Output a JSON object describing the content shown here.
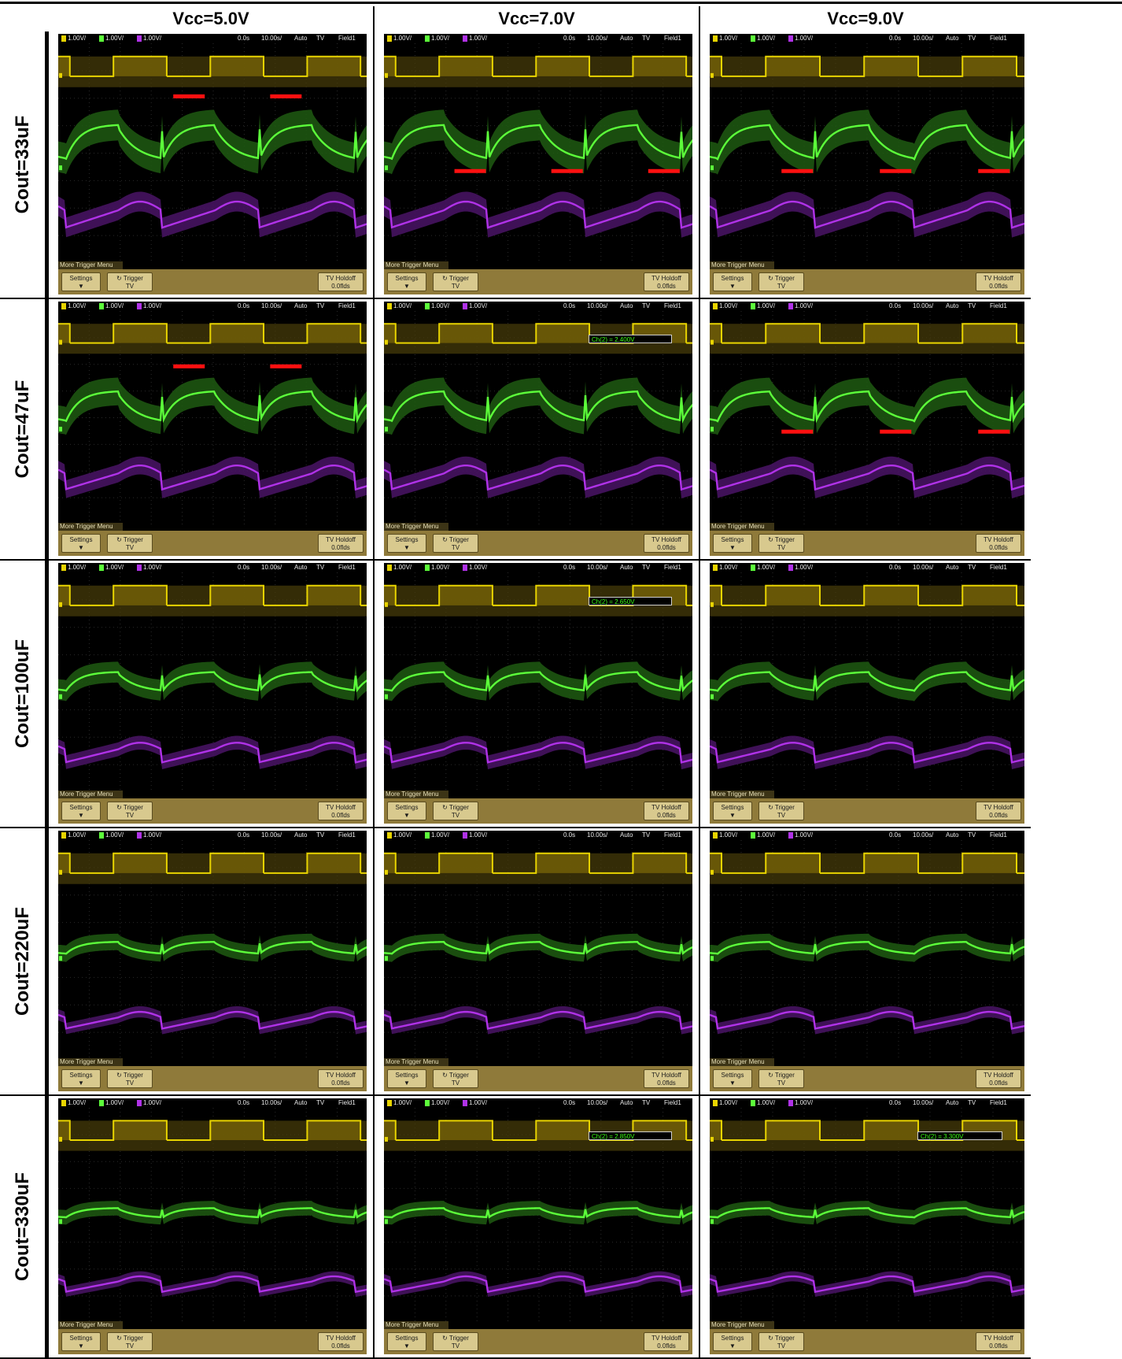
{
  "columns": [
    "Vcc=5.0V",
    "Vcc=7.0V",
    "Vcc=9.0V"
  ],
  "rows": [
    "Cout=33uF",
    "Cout=47uF",
    "Cout=100uF",
    "Cout=220uF",
    "Cout=330uF"
  ],
  "status_bar": {
    "ch1": "1.00V/",
    "ch2": "1.00V/",
    "ch3": "1.00V/",
    "delay": "0.0s",
    "timebase": "10.00s/",
    "trigger_mode": "Auto",
    "trigger_source": "TV",
    "field": "Field1"
  },
  "softkeys": {
    "menu_title": "More Trigger Menu",
    "settings": "Settings",
    "trigger": "Trigger",
    "trigger_sub": "TV",
    "holdoff": "TV Holdoff",
    "holdoff_value": "0.0flds"
  },
  "readouts": {
    "r1c1": "Ch(2) = 2.400V",
    "r2c1": "Ch(2) = 2.650V",
    "r4c1": "Ch(2) = 2.850V",
    "r4c2": "Ch(2) = 3.300V"
  },
  "colors": {
    "trace_yellow": "#e8d400",
    "trace_green": "#5cff3a",
    "trace_purple": "#b032e8",
    "marker_red": "#ff1010",
    "bezel": "#8f7a3a"
  }
}
